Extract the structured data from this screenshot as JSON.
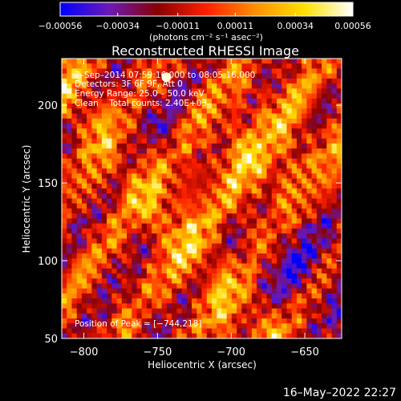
{
  "chart_data": {
    "type": "heatmap",
    "title": "Reconstructed RHESSI Image",
    "xlabel": "Heliocentric X (arcsec)",
    "ylabel": "Heliocentric Y (arcsec)",
    "xlim": [
      -815,
      -625
    ],
    "ylim": [
      50,
      230
    ],
    "x_ticks": [
      {
        "value": -800,
        "label": "−800"
      },
      {
        "value": -750,
        "label": "−750"
      },
      {
        "value": -700,
        "label": "−700"
      },
      {
        "value": -650,
        "label": "−650"
      }
    ],
    "y_ticks": [
      {
        "value": 50,
        "label": "50"
      },
      {
        "value": 100,
        "label": "100"
      },
      {
        "value": 150,
        "label": "150"
      },
      {
        "value": 200,
        "label": "200"
      }
    ],
    "colorbar": {
      "min": -0.00056,
      "max": 0.00056,
      "units": "(photons cm⁻² s⁻¹ asec⁻²)",
      "ticks": [
        {
          "value": -0.00056,
          "label": "−0.00056"
        },
        {
          "value": -0.00034,
          "label": "−0.00034"
        },
        {
          "value": -0.00011,
          "label": "−0.00011"
        },
        {
          "value": 0.00011,
          "label": "0.00011"
        },
        {
          "value": 0.00034,
          "label": "0.00034"
        },
        {
          "value": 0.00056,
          "label": "0.00056"
        }
      ],
      "colors": [
        "#0000ff",
        "#6a1ab8",
        "#8a0000",
        "#ff2000",
        "#ff9000",
        "#ffe000",
        "#ffffff"
      ]
    },
    "annotations": [
      "7–Sep–2014 07:59:16.000 to 08:05:16.000",
      "Detectors: 3F 6F 9F, Att 0",
      "Energy Range: 25.0 – 50.0 keV",
      "Clean    Total counts: 2.40E+03"
    ],
    "peak_label": "Position of Peak = [−744,218]",
    "peak": {
      "x": -744,
      "y": 218
    }
  },
  "footer": {
    "date": "16–May–2022 22:27"
  }
}
